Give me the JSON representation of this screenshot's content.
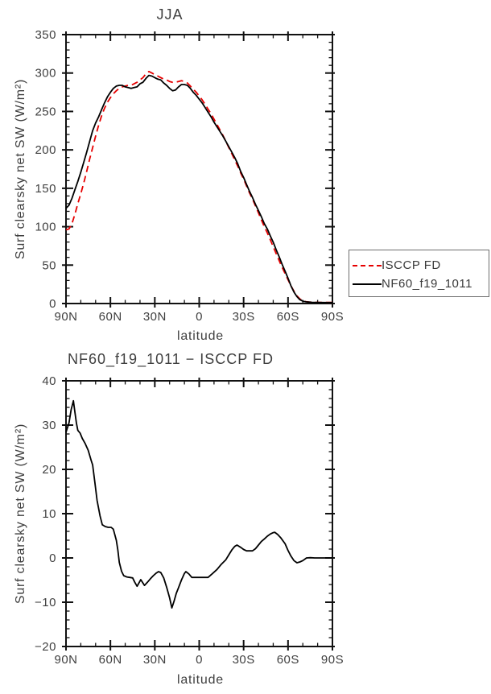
{
  "text_color": "#3f3f3f",
  "axis_color": "#111111",
  "accent_red": "#e60000",
  "chart_data": [
    {
      "type": "line",
      "title": "JJA",
      "xlabel": "latitude",
      "ylabel": "Surf clearsky net SW (W/m²)",
      "xlim": [
        90,
        -90
      ],
      "ylim": [
        0,
        350
      ],
      "grid": false,
      "x_ticks": {
        "values": [
          90,
          60,
          30,
          0,
          -30,
          -60,
          -90
        ],
        "labels": [
          "90N",
          "60N",
          "30N",
          "0",
          "30S",
          "60S",
          "90S"
        ],
        "minor_step": 10
      },
      "y_ticks": {
        "values": [
          0,
          50,
          100,
          150,
          200,
          250,
          300,
          350
        ],
        "labels": [
          "0",
          "50",
          "100",
          "150",
          "200",
          "250",
          "300",
          "350"
        ],
        "minor_step": 10
      },
      "legend": {
        "position": "outside-right",
        "items": [
          "ISCCP FD",
          "NF60_f19_1011"
        ]
      },
      "series": [
        {
          "name": "ISCCP FD",
          "color": "#e60000",
          "style": "dashed",
          "points": [
            [
              90,
              96
            ],
            [
              88,
              97
            ],
            [
              86,
              104
            ],
            [
              84,
              116
            ],
            [
              82,
              130
            ],
            [
              80,
              143
            ],
            [
              78,
              157
            ],
            [
              76,
              172
            ],
            [
              74,
              188
            ],
            [
              72,
              203
            ],
            [
              70,
              218
            ],
            [
              68,
              232
            ],
            [
              66,
              244
            ],
            [
              64,
              254
            ],
            [
              62,
              262
            ],
            [
              60,
              268
            ],
            [
              58,
              273
            ],
            [
              56,
              277
            ],
            [
              54,
              280
            ],
            [
              52,
              282
            ],
            [
              50,
              283
            ],
            [
              48,
              284
            ],
            [
              46,
              284
            ],
            [
              44,
              286
            ],
            [
              42,
              288
            ],
            [
              40,
              291
            ],
            [
              38,
              294
            ],
            [
              36,
              299
            ],
            [
              34,
              302
            ],
            [
              32,
              300
            ],
            [
              30,
              298
            ],
            [
              28,
              296
            ],
            [
              26,
              294
            ],
            [
              24,
              292
            ],
            [
              22,
              291
            ],
            [
              20,
              289
            ],
            [
              18,
              288
            ],
            [
              16,
              288
            ],
            [
              14,
              289
            ],
            [
              12,
              290
            ],
            [
              10,
              289
            ],
            [
              8,
              287
            ],
            [
              6,
              283
            ],
            [
              4,
              279
            ],
            [
              2,
              275
            ],
            [
              0,
              270
            ],
            [
              -2,
              265
            ],
            [
              -4,
              259
            ],
            [
              -6,
              253
            ],
            [
              -8,
              247
            ],
            [
              -10,
              240
            ],
            [
              -12,
              233
            ],
            [
              -14,
              226
            ],
            [
              -16,
              219
            ],
            [
              -18,
              211
            ],
            [
              -20,
              203
            ],
            [
              -22,
              195
            ],
            [
              -24,
              187
            ],
            [
              -26,
              179
            ],
            [
              -28,
              170
            ],
            [
              -30,
              162
            ],
            [
              -32,
              153
            ],
            [
              -34,
              144
            ],
            [
              -36,
              136
            ],
            [
              -38,
              127
            ],
            [
              -40,
              118
            ],
            [
              -42,
              109
            ],
            [
              -44,
              100
            ],
            [
              -46,
              92
            ],
            [
              -48,
              83
            ],
            [
              -50,
              74
            ],
            [
              -52,
              65
            ],
            [
              -54,
              56
            ],
            [
              -56,
              47
            ],
            [
              -58,
              39
            ],
            [
              -60,
              31
            ],
            [
              -62,
              23
            ],
            [
              -64,
              16
            ],
            [
              -66,
              10
            ],
            [
              -68,
              6
            ],
            [
              -70,
              3.5
            ],
            [
              -72,
              2.5
            ],
            [
              -74,
              2
            ],
            [
              -76,
              1.8
            ],
            [
              -80,
              1.5
            ],
            [
              -85,
              1.4
            ],
            [
              -90,
              1.4
            ]
          ]
        },
        {
          "name": "NF60_f19_1011",
          "color": "#000000",
          "style": "solid",
          "points": [
            [
              90,
              124
            ],
            [
              88,
              128
            ],
            [
              86,
              137
            ],
            [
              84,
              148
            ],
            [
              82,
              159
            ],
            [
              80,
              171
            ],
            [
              78,
              184
            ],
            [
              76,
              197
            ],
            [
              74,
              211
            ],
            [
              72,
              225
            ],
            [
              70,
              235
            ],
            [
              68,
              243
            ],
            [
              66,
              252
            ],
            [
              64,
              261
            ],
            [
              62,
              269
            ],
            [
              60,
              275
            ],
            [
              58,
              280
            ],
            [
              56,
              283
            ],
            [
              54,
              284
            ],
            [
              52,
              284
            ],
            [
              50,
              282
            ],
            [
              48,
              281
            ],
            [
              46,
              280
            ],
            [
              44,
              281
            ],
            [
              42,
              282
            ],
            [
              40,
              286
            ],
            [
              38,
              288
            ],
            [
              36,
              293
            ],
            [
              34,
              297
            ],
            [
              32,
              296
            ],
            [
              30,
              294
            ],
            [
              28,
              292
            ],
            [
              26,
              291
            ],
            [
              24,
              287
            ],
            [
              22,
              284
            ],
            [
              20,
              280
            ],
            [
              18,
              277
            ],
            [
              16,
              278
            ],
            [
              14,
              282
            ],
            [
              12,
              285
            ],
            [
              10,
              285
            ],
            [
              8,
              284
            ],
            [
              6,
              280
            ],
            [
              4,
              275
            ],
            [
              2,
              271
            ],
            [
              0,
              266
            ],
            [
              -2,
              261
            ],
            [
              -4,
              255
            ],
            [
              -6,
              249
            ],
            [
              -8,
              243
            ],
            [
              -10,
              236
            ],
            [
              -12,
              230
            ],
            [
              -14,
              224
            ],
            [
              -16,
              218
            ],
            [
              -18,
              211
            ],
            [
              -20,
              204
            ],
            [
              -22,
              197
            ],
            [
              -24,
              190
            ],
            [
              -26,
              182
            ],
            [
              -28,
              172
            ],
            [
              -30,
              164
            ],
            [
              -32,
              155
            ],
            [
              -34,
              146
            ],
            [
              -36,
              138
            ],
            [
              -38,
              129
            ],
            [
              -40,
              121
            ],
            [
              -42,
              113
            ],
            [
              -44,
              104
            ],
            [
              -46,
              97
            ],
            [
              -48,
              88
            ],
            [
              -50,
              80
            ],
            [
              -52,
              70
            ],
            [
              -54,
              61
            ],
            [
              -56,
              51
            ],
            [
              -58,
              42
            ],
            [
              -60,
              33
            ],
            [
              -62,
              23
            ],
            [
              -64,
              15
            ],
            [
              -66,
              9
            ],
            [
              -68,
              5
            ],
            [
              -70,
              3
            ],
            [
              -72,
              2.2
            ],
            [
              -74,
              1.9
            ],
            [
              -76,
              1.6
            ],
            [
              -80,
              1.4
            ],
            [
              -85,
              1.3
            ],
            [
              -90,
              1.3
            ]
          ]
        }
      ]
    },
    {
      "type": "line",
      "title": "NF60_f19_1011 − ISCCP FD",
      "xlabel": "latitude",
      "ylabel": "Surf clearsky net SW (W/m²)",
      "xlim": [
        90,
        -90
      ],
      "ylim": [
        -20,
        40
      ],
      "grid": false,
      "x_ticks": {
        "values": [
          90,
          60,
          30,
          0,
          -30,
          -60,
          -90
        ],
        "labels": [
          "90N",
          "60N",
          "30N",
          "0",
          "30S",
          "60S",
          "90S"
        ],
        "minor_step": 10
      },
      "y_ticks": {
        "values": [
          -20,
          -10,
          0,
          10,
          20,
          30,
          40
        ],
        "labels": [
          "−20",
          "−10",
          "0",
          "10",
          "20",
          "30",
          "40"
        ],
        "minor_step": 2
      },
      "series": [
        {
          "name": "NF60_f19_1011 − ISCCP FD",
          "color": "#000000",
          "style": "solid",
          "points": [
            [
              90,
              28.4
            ],
            [
              88,
              30.5
            ],
            [
              86.5,
              33.5
            ],
            [
              85,
              35.5
            ],
            [
              84,
              33
            ],
            [
              83,
              30.5
            ],
            [
              82,
              28.8
            ],
            [
              80.5,
              28.2
            ],
            [
              79,
              27
            ],
            [
              77,
              25.8
            ],
            [
              75,
              24.3
            ],
            [
              73,
              22
            ],
            [
              72,
              21
            ],
            [
              70.5,
              17
            ],
            [
              69,
              13
            ],
            [
              67,
              9.5
            ],
            [
              65.5,
              7.5
            ],
            [
              63.5,
              7.1
            ],
            [
              61.5,
              6.9
            ],
            [
              59.5,
              6.9
            ],
            [
              58,
              6.5
            ],
            [
              56,
              4
            ],
            [
              55,
              1.8
            ],
            [
              54,
              -1
            ],
            [
              52.5,
              -3
            ],
            [
              51,
              -4
            ],
            [
              49,
              -4.3
            ],
            [
              47,
              -4.4
            ],
            [
              45,
              -4.5
            ],
            [
              43.5,
              -5.5
            ],
            [
              42,
              -6.4
            ],
            [
              39.5,
              -4.9
            ],
            [
              37,
              -6.2
            ],
            [
              35,
              -5.5
            ],
            [
              33,
              -4.7
            ],
            [
              31,
              -4
            ],
            [
              29,
              -3.4
            ],
            [
              27.5,
              -3.1
            ],
            [
              26,
              -3.3
            ],
            [
              24,
              -4.5
            ],
            [
              22,
              -6.6
            ],
            [
              20,
              -9
            ],
            [
              18.5,
              -11.3
            ],
            [
              17,
              -9.8
            ],
            [
              15.5,
              -8
            ],
            [
              14,
              -6.7
            ],
            [
              12,
              -5
            ],
            [
              10,
              -3.5
            ],
            [
              9,
              -3.1
            ],
            [
              7,
              -3.6
            ],
            [
              5,
              -4.4
            ],
            [
              3,
              -4.4
            ],
            [
              0,
              -4.4
            ],
            [
              -3,
              -4.4
            ],
            [
              -6,
              -4.4
            ],
            [
              -9,
              -3.5
            ],
            [
              -12,
              -2.6
            ],
            [
              -15,
              -1.4
            ],
            [
              -18,
              -0.4
            ],
            [
              -20,
              0.7
            ],
            [
              -22,
              1.8
            ],
            [
              -24,
              2.6
            ],
            [
              -25.5,
              2.9
            ],
            [
              -28,
              2.4
            ],
            [
              -30,
              1.9
            ],
            [
              -32,
              1.6
            ],
            [
              -34,
              1.6
            ],
            [
              -36,
              1.6
            ],
            [
              -38,
              2.1
            ],
            [
              -40,
              2.9
            ],
            [
              -42,
              3.7
            ],
            [
              -44,
              4.3
            ],
            [
              -46,
              4.9
            ],
            [
              -48,
              5.4
            ],
            [
              -50,
              5.7
            ],
            [
              -51,
              5.8
            ],
            [
              -53,
              5.3
            ],
            [
              -55,
              4.6
            ],
            [
              -58,
              3.2
            ],
            [
              -60,
              1.7
            ],
            [
              -62,
              0.4
            ],
            [
              -64,
              -0.6
            ],
            [
              -66,
              -1.1
            ],
            [
              -68,
              -0.9
            ],
            [
              -70,
              -0.6
            ],
            [
              -72.5,
              0
            ],
            [
              -75,
              0.05
            ],
            [
              -78,
              0
            ],
            [
              -82,
              0
            ],
            [
              -86,
              0
            ],
            [
              -90,
              0
            ]
          ]
        }
      ]
    }
  ]
}
